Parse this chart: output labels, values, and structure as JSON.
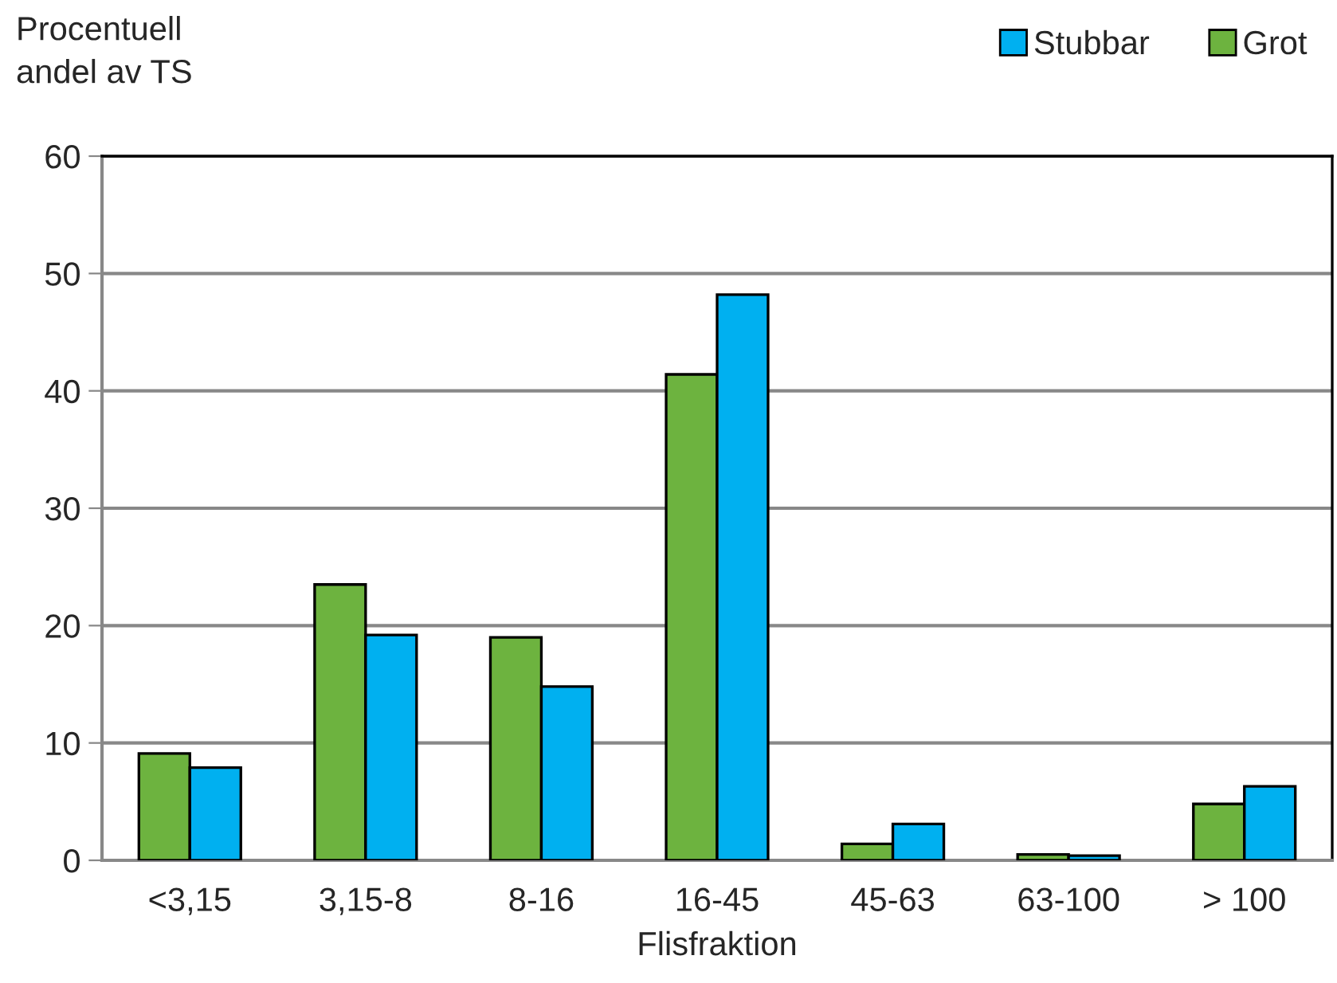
{
  "chart_data": {
    "type": "bar",
    "ylabel": "Procentuell\nandel av TS",
    "xlabel": "Flisfraktion",
    "categories": [
      "<3,15",
      "3,15-8",
      "8-16",
      "16-45",
      "45-63",
      "63-100",
      "> 100"
    ],
    "series": [
      {
        "name": "Grot",
        "color": "#6db33f",
        "values": [
          9.1,
          23.5,
          19.0,
          41.4,
          1.4,
          0.5,
          4.8
        ]
      },
      {
        "name": "Stubbar",
        "color": "#00b0f0",
        "values": [
          7.9,
          19.2,
          14.8,
          48.2,
          3.1,
          0.4,
          6.3
        ]
      }
    ],
    "ylim": [
      0,
      60
    ],
    "yticks": [
      0,
      10,
      20,
      30,
      40,
      50,
      60
    ],
    "grid": "y",
    "legend": "top right"
  }
}
